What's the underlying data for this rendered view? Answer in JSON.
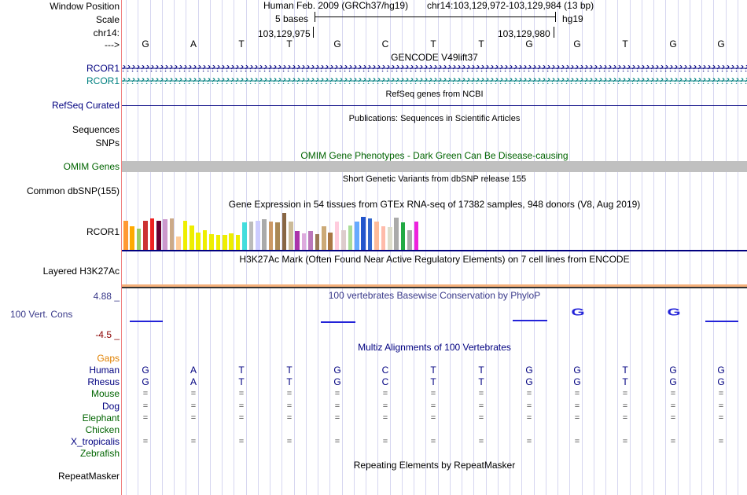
{
  "colors": {
    "gencode": "#000080",
    "gencode2": "#008080",
    "omim_bar": "#c0c0c0",
    "h3k": "#f5b07a",
    "phylop": "#2323d8"
  },
  "header": {
    "window_position_label": "Window Position",
    "scale_label": "Scale",
    "chrom_label": "chr14:",
    "arrow_label": "--->",
    "assembly": "Human Feb. 2009 (GRCh37/hg19)",
    "position": "chr14:103,129,972-103,129,984 (13 bp)",
    "scale_text": "5 bases",
    "db": "hg19",
    "coord_left": "103,129,975",
    "coord_right": "103,129,980"
  },
  "ruler_bases": [
    "G",
    "A",
    "T",
    "T",
    "G",
    "C",
    "T",
    "T",
    "G",
    "G",
    "T",
    "G",
    "G"
  ],
  "tracks": {
    "gencode_title": "GENCODE V49lift37",
    "gencode_label1": "RCOR1",
    "gencode_label2": "RCOR1",
    "refseq_label": "RefSeq Curated",
    "refseq_title": "RefSeq genes from NCBI",
    "pubs_title": "Publications: Sequences in Scientific Articles",
    "pubs_label": "Sequences",
    "snps_label": "SNPs",
    "omim_title": "OMIM Gene Phenotypes - Dark Green Can Be Disease-causing",
    "omim_label": "OMIM Genes",
    "dbsnp_title": "Short Genetic Variants from dbSNP release 155",
    "dbsnp_label": "Common dbSNP(155)",
    "gtex_title": "Gene Expression in 54 tissues from GTEx RNA-seq of 17382 samples, 948 donors (V8, Aug 2019)",
    "gtex_label": "RCOR1",
    "h3k_title": "H3K27Ac Mark (Often Found Near Active Regulatory Elements) on 7 cell lines from ENCODE",
    "h3k_label": "Layered H3K27Ac",
    "phylop_max": "4.88 _",
    "phylop_label": "100 Vert. Cons",
    "phylop_min": "-4.5 _",
    "phylop_title": "100 vertebrates Basewise Conservation by PhyloP",
    "phylop_letters": [
      "G",
      "G"
    ],
    "multiz_title": "Multiz Alignments of 100 Vertebrates",
    "rmsk_title": "Repeating Elements by RepeatMasker",
    "rmsk_label": "RepeatMasker"
  },
  "gtex_bars": [
    {
      "color": "#ff9933",
      "value": 0.75
    },
    {
      "color": "#ffaa00",
      "value": 0.6
    },
    {
      "color": "#99cc66",
      "value": 0.55
    },
    {
      "color": "#cc3333",
      "value": 0.75
    },
    {
      "color": "#ee2222",
      "value": 0.8
    },
    {
      "color": "#660033",
      "value": 0.75
    },
    {
      "color": "#cc99cc",
      "value": 0.78
    },
    {
      "color": "#ccaa88",
      "value": 0.8
    },
    {
      "color": "#ffcc99",
      "value": 0.35
    },
    {
      "color": "#eeee00",
      "value": 0.75
    },
    {
      "color": "#eeee00",
      "value": 0.62
    },
    {
      "color": "#eeee00",
      "value": 0.45
    },
    {
      "color": "#eeee00",
      "value": 0.5
    },
    {
      "color": "#eeee00",
      "value": 0.4
    },
    {
      "color": "#eeee00",
      "value": 0.38
    },
    {
      "color": "#eeee00",
      "value": 0.38
    },
    {
      "color": "#eeee00",
      "value": 0.42
    },
    {
      "color": "#eeee00",
      "value": 0.38
    },
    {
      "color": "#44dddd",
      "value": 0.7
    },
    {
      "color": "#bbbbbb",
      "value": 0.72
    },
    {
      "color": "#ccccff",
      "value": 0.75
    },
    {
      "color": "#aaaaaa",
      "value": 0.78
    },
    {
      "color": "#cc9966",
      "value": 0.72
    },
    {
      "color": "#aa8855",
      "value": 0.7
    },
    {
      "color": "#886644",
      "value": 0.95
    },
    {
      "color": "#ccbb99",
      "value": 0.72
    },
    {
      "color": "#aa33aa",
      "value": 0.48
    },
    {
      "color": "#ddaadd",
      "value": 0.42
    },
    {
      "color": "#bb77bb",
      "value": 0.48
    },
    {
      "color": "#997755",
      "value": 0.4
    },
    {
      "color": "#ccaa77",
      "value": 0.6
    },
    {
      "color": "#aa7744",
      "value": 0.45
    },
    {
      "color": "#ffccdd",
      "value": 0.72
    },
    {
      "color": "#ddcccc",
      "value": 0.5
    },
    {
      "color": "#aadd99",
      "value": 0.62
    },
    {
      "color": "#66aaff",
      "value": 0.72
    },
    {
      "color": "#2255cc",
      "value": 0.85
    },
    {
      "color": "#3366cc",
      "value": 0.8
    },
    {
      "color": "#ffbb99",
      "value": 0.72
    },
    {
      "color": "#ffbbaa",
      "value": 0.6
    },
    {
      "color": "#ddddcc",
      "value": 0.58
    },
    {
      "color": "#aaaaaa",
      "value": 0.82
    },
    {
      "color": "#22aa44",
      "value": 0.7
    },
    {
      "color": "#aaaaaa",
      "value": 0.5
    },
    {
      "color": "#ee22dd",
      "value": 0.72
    }
  ],
  "multiz": {
    "gaps_label": "Gaps",
    "species": [
      {
        "name": "Human",
        "color": "#000080",
        "bases": [
          "G",
          "A",
          "T",
          "T",
          "G",
          "C",
          "T",
          "T",
          "G",
          "G",
          "T",
          "G",
          "G"
        ]
      },
      {
        "name": "Rhesus",
        "color": "#000080",
        "bases": [
          "G",
          "A",
          "T",
          "T",
          "G",
          "C",
          "T",
          "T",
          "G",
          "G",
          "T",
          "G",
          "G"
        ]
      },
      {
        "name": "Mouse",
        "color": "#006400",
        "bases": [
          "=",
          "=",
          "=",
          "=",
          "=",
          "=",
          "=",
          "=",
          "=",
          "=",
          "=",
          "=",
          "="
        ]
      },
      {
        "name": "Dog",
        "color": "#000080",
        "bases": [
          "=",
          "=",
          "=",
          "=",
          "=",
          "=",
          "=",
          "=",
          "=",
          "=",
          "=",
          "=",
          "="
        ]
      },
      {
        "name": "Elephant",
        "color": "#006400",
        "bases": [
          "=",
          "=",
          "=",
          "=",
          "=",
          "=",
          "=",
          "=",
          "=",
          "=",
          "=",
          "=",
          "="
        ]
      },
      {
        "name": "Chicken",
        "color": "#006400",
        "bases": []
      },
      {
        "name": "X_tropicalis",
        "color": "#000080",
        "bases": [
          "=",
          "=",
          "=",
          "=",
          "=",
          "=",
          "=",
          "=",
          "=",
          "=",
          "=",
          "=",
          "="
        ]
      },
      {
        "name": "Zebrafish",
        "color": "#006400",
        "bases": []
      }
    ]
  }
}
